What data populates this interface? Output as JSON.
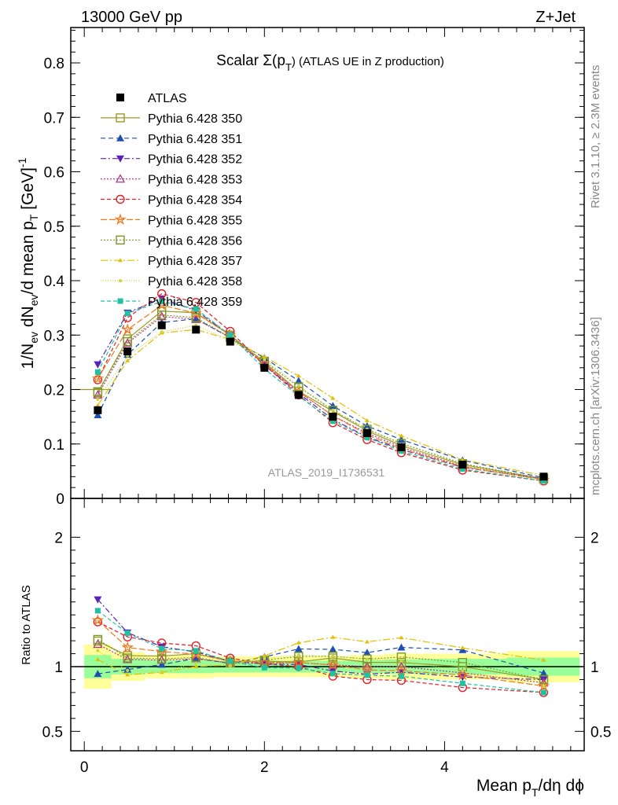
{
  "header": {
    "left": "13000 GeV pp",
    "right": "Z+Jet"
  },
  "side_labels": {
    "rivet": "Rivet 3.1.10, ≥ 2.3M events",
    "mcplots": "mcplots.cern.ch [arXiv:1306.3436]"
  },
  "analysis_tag": "ATLAS_2019_I1736531",
  "chart_data": {
    "type": "scatter",
    "title_main": "Scalar Σ(p",
    "title_sub": "T",
    "title_tail": ") (ATLAS UE in Z production)",
    "ylabel": "1/N_ev dN_ev/d mean p_T [GeV]^-1",
    "ylabel_parts": {
      "a": "1/N",
      "a_sub": "ev",
      "b": " dN",
      "b_sub": "ev",
      "c": "/d mean p",
      "c_sub": "T",
      "d": " [GeV]",
      "d_sup": "-1"
    },
    "ratio_ylabel": "Ratio to ATLAS",
    "xlabel_parts": {
      "a": "Mean p",
      "a_sub": "T",
      "b": "/dη dϕ"
    },
    "xlim": [
      -0.15,
      5.55
    ],
    "ylim": [
      0,
      0.865
    ],
    "ratio_ylim": [
      0.35,
      2.3
    ],
    "x_ticks": [
      "0",
      "2",
      "4"
    ],
    "y_ticks": [
      "0",
      "0.1",
      "0.2",
      "0.3",
      "0.4",
      "0.5",
      "0.6",
      "0.7",
      "0.8"
    ],
    "ratio_y_ticks": [
      "0.5",
      "1",
      "2"
    ],
    "x": [
      0.15,
      0.48,
      0.86,
      1.24,
      1.62,
      2.0,
      2.38,
      2.76,
      3.14,
      3.52,
      4.2,
      5.1
    ],
    "bin_edges": [
      0.0,
      0.3,
      0.67,
      1.05,
      1.43,
      1.81,
      2.19,
      2.57,
      2.95,
      3.33,
      3.71,
      4.69,
      5.5
    ],
    "reference": {
      "name": "ATLAS",
      "values": [
        0.162,
        0.27,
        0.318,
        0.31,
        0.288,
        0.24,
        0.19,
        0.15,
        0.12,
        0.094,
        0.062,
        0.04
      ]
    },
    "ratio_band_yellow": [
      0.17,
      0.11,
      0.09,
      0.09,
      0.08,
      0.08,
      0.08,
      0.08,
      0.09,
      0.1,
      0.1,
      0.12
    ],
    "ratio_band_green": [
      0.09,
      0.06,
      0.05,
      0.05,
      0.045,
      0.045,
      0.045,
      0.045,
      0.05,
      0.055,
      0.06,
      0.07
    ],
    "series": [
      {
        "name": "Pythia 6.428 350",
        "color": "#9a9a2a",
        "marker": "square-open",
        "dash": "",
        "values": [
          0.194,
          0.293,
          0.344,
          0.341,
          0.3,
          0.25,
          0.197,
          0.16,
          0.124,
          0.097,
          0.062,
          0.036
        ]
      },
      {
        "name": "Pythia 6.428 351",
        "color": "#1f4fb0",
        "marker": "triangle-up",
        "dash": "6,4",
        "values": [
          0.153,
          0.264,
          0.323,
          0.33,
          0.295,
          0.258,
          0.216,
          0.17,
          0.133,
          0.108,
          0.07,
          0.038
        ]
      },
      {
        "name": "Pythia 6.428 352",
        "color": "#5a22b8",
        "marker": "triangle-down",
        "dash": "7,3,2,3",
        "values": [
          0.246,
          0.341,
          0.367,
          0.345,
          0.3,
          0.245,
          0.193,
          0.145,
          0.113,
          0.09,
          0.057,
          0.036
        ]
      },
      {
        "name": "Pythia 6.428 353",
        "color": "#b03a8a",
        "marker": "triangle-open",
        "dash": "2,2",
        "values": [
          0.19,
          0.285,
          0.334,
          0.329,
          0.296,
          0.246,
          0.196,
          0.152,
          0.12,
          0.094,
          0.059,
          0.035
        ]
      },
      {
        "name": "Pythia 6.428 354",
        "color": "#e0202a",
        "marker": "circle-open",
        "dash": "5,3",
        "values": [
          0.218,
          0.332,
          0.376,
          0.36,
          0.307,
          0.245,
          0.19,
          0.139,
          0.108,
          0.084,
          0.052,
          0.032
        ]
      },
      {
        "name": "Pythia 6.428 355",
        "color": "#f07a20",
        "marker": "star",
        "dash": "8,3",
        "values": [
          0.22,
          0.31,
          0.355,
          0.34,
          0.3,
          0.248,
          0.196,
          0.152,
          0.117,
          0.091,
          0.058,
          0.034
        ]
      },
      {
        "name": "Pythia 6.428 356",
        "color": "#7a9a2a",
        "marker": "square-open",
        "dash": "2,2",
        "values": [
          0.196,
          0.288,
          0.337,
          0.332,
          0.296,
          0.252,
          0.205,
          0.162,
          0.127,
          0.101,
          0.064,
          0.036
        ]
      },
      {
        "name": "Pythia 6.428 357",
        "color": "#e0c000",
        "marker": "tri-small",
        "dash": "9,3,2,3",
        "values": [
          0.171,
          0.253,
          0.304,
          0.31,
          0.292,
          0.26,
          0.225,
          0.184,
          0.143,
          0.115,
          0.071,
          0.042
        ]
      },
      {
        "name": "Pythia 6.428 358",
        "color": "#c8d838",
        "marker": "dot",
        "dash": "1,2",
        "values": [
          0.182,
          0.262,
          0.306,
          0.318,
          0.29,
          0.255,
          0.207,
          0.162,
          0.127,
          0.098,
          0.06,
          0.034
        ]
      },
      {
        "name": "Pythia 6.428 359",
        "color": "#20c0a0",
        "marker": "square-filled",
        "dash": "5,3",
        "values": [
          0.232,
          0.34,
          0.362,
          0.348,
          0.3,
          0.238,
          0.188,
          0.142,
          0.112,
          0.087,
          0.054,
          0.032
        ]
      }
    ]
  }
}
